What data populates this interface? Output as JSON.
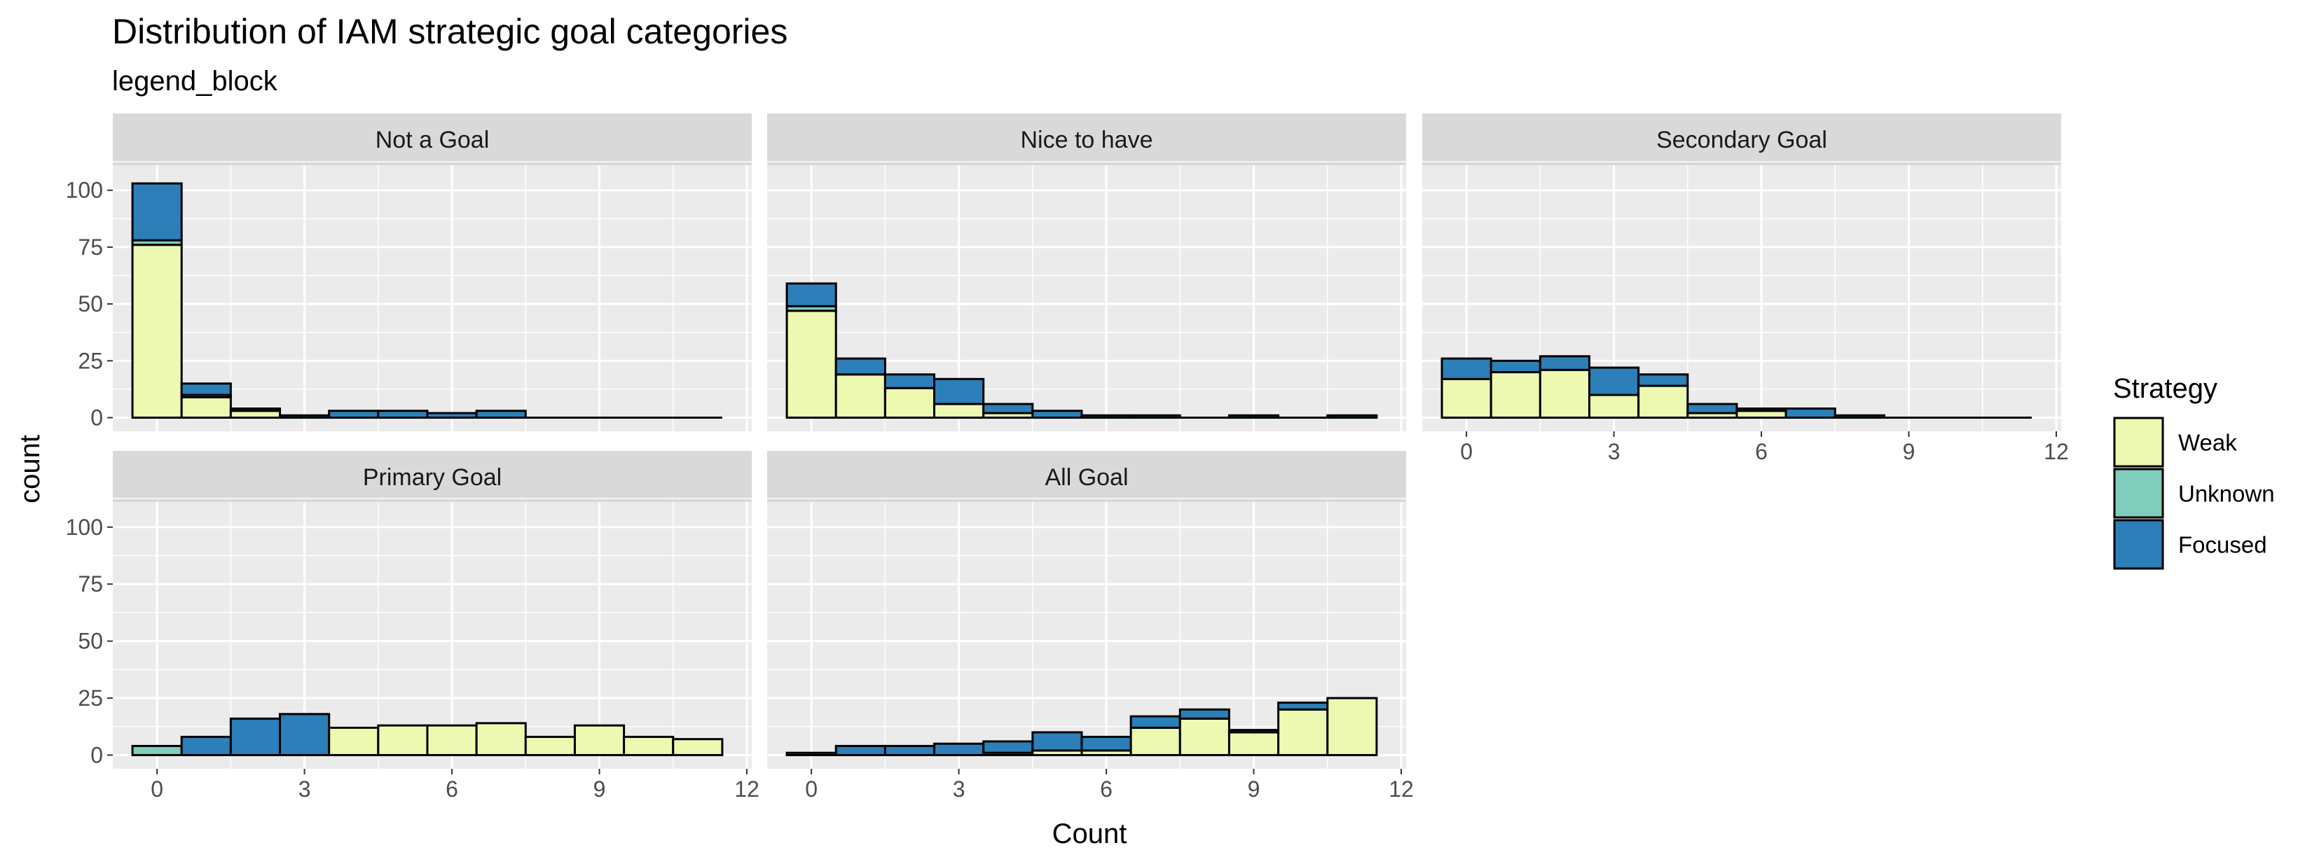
{
  "chart_data": {
    "type": "bar",
    "stacked": true,
    "title": "Distribution of IAM strategic goal categories",
    "subtitle": "legend_block",
    "xlabel": "Count",
    "ylabel": "count",
    "xlim": [
      -0.9,
      12.1
    ],
    "ylim": [
      -6,
      111
    ],
    "x_ticks": [
      0,
      3,
      6,
      9,
      12
    ],
    "y_ticks": [
      0,
      25,
      50,
      75,
      100
    ],
    "bin_width": 1,
    "grid": true,
    "legend": {
      "title": "Strategy",
      "position": "right",
      "entries": [
        {
          "label": "Weak",
          "color": "#edf8b1"
        },
        {
          "label": "Unknown",
          "color": "#7fcdbb"
        },
        {
          "label": "Focused",
          "color": "#2c7fb8"
        }
      ]
    },
    "bar_outline_color": "#000000",
    "panels": [
      {
        "name": "Not a Goal",
        "x": [
          0,
          1,
          2,
          3,
          4,
          5,
          6,
          7,
          8,
          9,
          10,
          11
        ],
        "series": [
          {
            "name": "Weak",
            "values": [
              76,
              9,
              3,
              0,
              0,
              0,
              0,
              0,
              0,
              0,
              0,
              0
            ]
          },
          {
            "name": "Unknown",
            "values": [
              2,
              1,
              0,
              0,
              0,
              0,
              0,
              0,
              0,
              0,
              0,
              0
            ]
          },
          {
            "name": "Focused",
            "values": [
              25,
              5,
              1,
              1,
              3,
              3,
              2,
              3,
              0,
              0,
              0,
              0
            ]
          }
        ]
      },
      {
        "name": "Nice to have",
        "x": [
          0,
          1,
          2,
          3,
          4,
          5,
          6,
          7,
          8,
          9,
          10,
          11
        ],
        "series": [
          {
            "name": "Weak",
            "values": [
              47,
              19,
              13,
              6,
              2,
              0,
              0,
              0,
              0,
              0,
              0,
              0
            ]
          },
          {
            "name": "Unknown",
            "values": [
              2,
              0,
              0,
              0,
              0,
              0,
              0,
              0,
              0,
              0,
              0,
              0
            ]
          },
          {
            "name": "Focused",
            "values": [
              10,
              7,
              6,
              11,
              4,
              3,
              1,
              1,
              0,
              1,
              0,
              1
            ]
          }
        ]
      },
      {
        "name": "Secondary Goal",
        "x": [
          0,
          1,
          2,
          3,
          4,
          5,
          6,
          7,
          8,
          9,
          10,
          11
        ],
        "series": [
          {
            "name": "Weak",
            "values": [
              17,
              20,
              21,
              10,
              14,
              2,
              3,
              0,
              0,
              0,
              0,
              0
            ]
          },
          {
            "name": "Unknown",
            "values": [
              0,
              0,
              0,
              0,
              0,
              0,
              0,
              0,
              0,
              0,
              0,
              0
            ]
          },
          {
            "name": "Focused",
            "values": [
              9,
              5,
              6,
              12,
              5,
              4,
              1,
              4,
              1,
              0,
              0,
              0
            ]
          }
        ]
      },
      {
        "name": "Primary Goal",
        "x": [
          0,
          1,
          2,
          3,
          4,
          5,
          6,
          7,
          8,
          9,
          10,
          11
        ],
        "series": [
          {
            "name": "Weak",
            "values": [
              0,
              0,
              0,
              0,
              12,
              13,
              13,
              14,
              8,
              13,
              8,
              7
            ]
          },
          {
            "name": "Unknown",
            "values": [
              4,
              0,
              0,
              0,
              0,
              0,
              0,
              0,
              0,
              0,
              0,
              0
            ]
          },
          {
            "name": "Focused",
            "values": [
              0,
              8,
              16,
              18,
              0,
              0,
              0,
              0,
              0,
              0,
              0,
              0
            ]
          }
        ]
      },
      {
        "name": "All Goal",
        "x": [
          0,
          1,
          2,
          3,
          4,
          5,
          6,
          7,
          8,
          9,
          10,
          11
        ],
        "series": [
          {
            "name": "Weak",
            "values": [
              0,
              0,
              0,
              0,
              1,
              2,
              2,
              12,
              16,
              10,
              20,
              25
            ]
          },
          {
            "name": "Unknown",
            "values": [
              0,
              0,
              0,
              0,
              0,
              0,
              0,
              0,
              0,
              0,
              0,
              0
            ]
          },
          {
            "name": "Focused",
            "values": [
              1,
              4,
              4,
              5,
              5,
              8,
              6,
              5,
              4,
              1,
              3,
              0
            ]
          }
        ]
      }
    ]
  }
}
